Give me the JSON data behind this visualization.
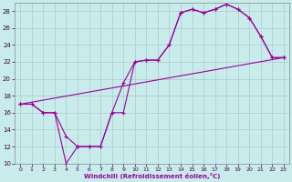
{
  "title": "",
  "xlabel": "Windchill (Refroidissement éolien,°C)",
  "bg_color": "#c8ecec",
  "line_color": "#990099",
  "grid_color": "#b0c8c8",
  "xlim": [
    -0.5,
    23.5
  ],
  "ylim": [
    10,
    29
  ],
  "yticks": [
    10,
    12,
    14,
    16,
    18,
    20,
    22,
    24,
    26,
    28
  ],
  "xticks": [
    0,
    1,
    2,
    3,
    4,
    5,
    6,
    7,
    8,
    9,
    10,
    11,
    12,
    13,
    14,
    15,
    16,
    17,
    18,
    19,
    20,
    21,
    22,
    23
  ],
  "series1_x": [
    0,
    1,
    2,
    3,
    4,
    5,
    6,
    7,
    8,
    9,
    10,
    11,
    12,
    13,
    14,
    15,
    16,
    17,
    18,
    19,
    20,
    21,
    22,
    23
  ],
  "series1_y": [
    17,
    17,
    16,
    16,
    10,
    12,
    12,
    12,
    16,
    19.5,
    22,
    22.2,
    22.2,
    24,
    27.8,
    28.2,
    27.8,
    28.2,
    28.8,
    28.2,
    27.2,
    25,
    22.5,
    22.5
  ],
  "series2_x": [
    0,
    1,
    2,
    3,
    4,
    5,
    6,
    7,
    8,
    9,
    10,
    11,
    12,
    13,
    14,
    15,
    16,
    17,
    18,
    19,
    20,
    21,
    22,
    23
  ],
  "series2_y": [
    17,
    17,
    16,
    16,
    13.2,
    12,
    12,
    12,
    16,
    16.0,
    22,
    22.2,
    22.2,
    24,
    27.8,
    28.2,
    27.8,
    28.2,
    28.8,
    28.2,
    27.2,
    25,
    22.5,
    22.5
  ],
  "series3_x": [
    0,
    23
  ],
  "series3_y": [
    17,
    22.5
  ]
}
